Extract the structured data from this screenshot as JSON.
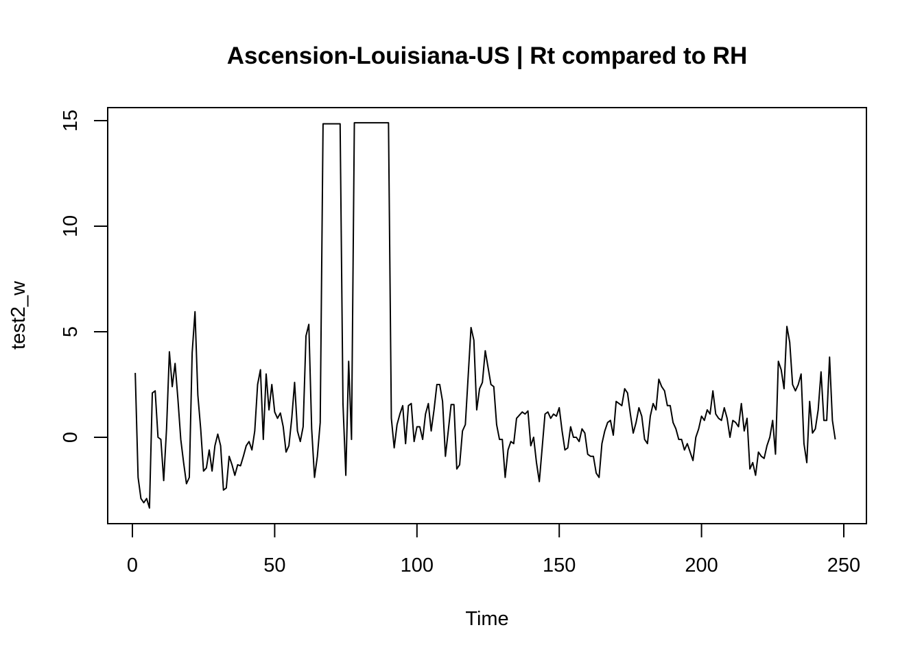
{
  "chart_data": {
    "type": "line",
    "title": "Ascension-Louisiana-US | Rt compared to RH",
    "xlabel": "Time",
    "ylabel": "test2_w",
    "xlim": [
      1,
      248
    ],
    "ylim": [
      -3.3,
      14.9
    ],
    "x_ticks": [
      0,
      50,
      100,
      150,
      200,
      250
    ],
    "y_ticks": [
      0,
      5,
      10,
      15
    ],
    "grid": false,
    "legend": "none",
    "line_color": "#000000",
    "series": [
      {
        "values": [
          3.05,
          -1.9,
          -2.9,
          -3.1,
          -2.9,
          -3.35,
          2.1,
          2.2,
          0.0,
          -0.1,
          -2.05,
          0.4,
          4.05,
          2.4,
          3.5,
          1.8,
          -0.1,
          -1.2,
          -2.2,
          -1.9,
          4.0,
          5.95,
          2.0,
          0.4,
          -1.6,
          -1.45,
          -0.6,
          -1.6,
          -0.4,
          0.15,
          -0.4,
          -2.5,
          -2.4,
          -0.9,
          -1.3,
          -1.8,
          -1.3,
          -1.35,
          -0.9,
          -0.4,
          -0.2,
          -0.6,
          0.3,
          2.5,
          3.2,
          -0.1,
          3.0,
          1.3,
          2.5,
          1.2,
          0.9,
          1.15,
          0.5,
          -0.7,
          -0.4,
          0.9,
          2.6,
          0.3,
          -0.2,
          0.5,
          4.8,
          5.35,
          0.4,
          -1.9,
          -0.9,
          0.7,
          14.85,
          14.85,
          14.85,
          14.85,
          14.85,
          14.85,
          14.85,
          1.6,
          -1.8,
          3.6,
          -0.1,
          14.9,
          14.9,
          14.9,
          14.9,
          14.9,
          14.9,
          14.9,
          14.9,
          14.9,
          14.9,
          14.9,
          14.9,
          14.9,
          0.9,
          -0.5,
          0.6,
          1.1,
          1.5,
          -0.3,
          1.5,
          1.6,
          -0.2,
          0.5,
          0.5,
          -0.1,
          1.1,
          1.6,
          0.3,
          1.3,
          2.5,
          2.5,
          1.7,
          -0.9,
          0.3,
          1.55,
          1.55,
          -1.5,
          -1.3,
          0.3,
          0.6,
          2.9,
          5.2,
          4.6,
          1.3,
          2.3,
          2.6,
          4.1,
          3.3,
          2.5,
          2.4,
          0.6,
          -0.1,
          -0.1,
          -1.9,
          -0.6,
          -0.2,
          -0.3,
          0.9,
          1.05,
          1.2,
          1.1,
          1.25,
          -0.4,
          0.0,
          -1.2,
          -2.1,
          -0.5,
          1.1,
          1.2,
          0.9,
          1.1,
          1.0,
          1.4,
          0.3,
          -0.6,
          -0.5,
          0.5,
          0.0,
          0.0,
          -0.2,
          0.4,
          0.2,
          -0.8,
          -0.9,
          -0.9,
          -1.7,
          -1.9,
          -0.3,
          0.3,
          0.7,
          0.8,
          0.1,
          1.7,
          1.6,
          1.5,
          2.3,
          2.1,
          1.1,
          0.2,
          0.7,
          1.4,
          1.0,
          -0.1,
          -0.3,
          1.0,
          1.6,
          1.3,
          2.75,
          2.4,
          2.2,
          1.5,
          1.5,
          0.7,
          0.4,
          -0.1,
          -0.1,
          -0.6,
          -0.3,
          -0.7,
          -1.1,
          0.0,
          0.4,
          1.0,
          0.8,
          1.3,
          1.1,
          2.2,
          1.1,
          0.9,
          0.8,
          1.4,
          0.9,
          0.0,
          0.8,
          0.7,
          0.5,
          1.6,
          0.3,
          0.9,
          -1.5,
          -1.2,
          -1.8,
          -0.7,
          -0.9,
          -1.0,
          -0.4,
          0.0,
          0.8,
          -0.8,
          3.6,
          3.2,
          2.3,
          5.25,
          4.5,
          2.5,
          2.2,
          2.5,
          3.0,
          -0.3,
          -1.2,
          1.7,
          0.2,
          0.4,
          1.3,
          3.1,
          0.8,
          0.8,
          3.8,
          0.8,
          -0.1
        ]
      }
    ]
  }
}
